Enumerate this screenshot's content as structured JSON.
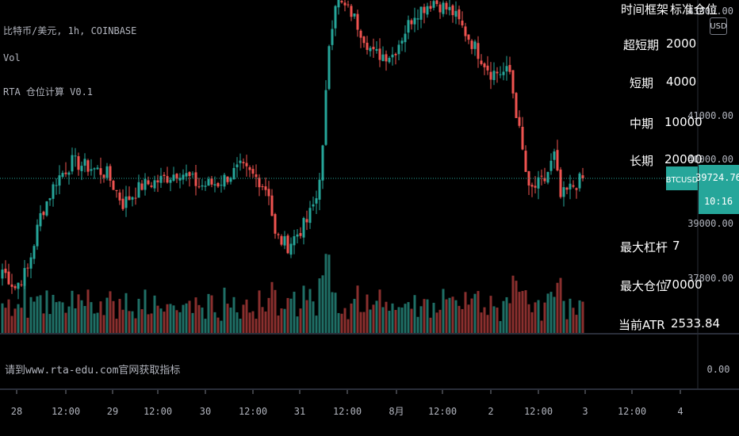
{
  "legend": {
    "symbol_line": "比特币/美元, 1h, COINBASE",
    "volume_label": "Vol",
    "indicator_label": "RTA 仓位计算 V0.1"
  },
  "position_table": {
    "header": [
      "时间框架",
      "标准仓位"
    ],
    "rows": [
      {
        "name": "超短期",
        "value": "2000"
      },
      {
        "name": "短期",
        "value": "4000"
      },
      {
        "name": "中期",
        "value": "10000"
      },
      {
        "name": "长期",
        "value": "20000"
      }
    ],
    "lower_rows": [
      {
        "name": "最大杠杆",
        "value": "7"
      },
      {
        "name": "最大仓位",
        "value": "70000"
      },
      {
        "name": "当前ATR",
        "value": "2533.84"
      }
    ]
  },
  "lower_pane": {
    "text": "请到www.rta-edu.com官网获取指标",
    "axis_value": "0.00"
  },
  "price_scale_button": "USD",
  "current_price": {
    "symbol": "BTCUSD",
    "price": "39724.76",
    "countdown": "10:16"
  },
  "colors": {
    "background": "#000000",
    "up": "#26a69a",
    "down": "#ef5350",
    "up_volume": "#1f6f66",
    "down_volume": "#8a2f2e",
    "price_line": "#26a69a",
    "axis_text": "#b2b5be"
  },
  "chart_data": {
    "type": "candlestick",
    "y_axis_ticks": [
      "43000.00",
      "41000.00",
      "40000.00",
      "39000.00",
      "37800.00"
    ],
    "x_axis_ticks": [
      "28",
      "12:00",
      "29",
      "12:00",
      "30",
      "12:00",
      "31",
      "12:00",
      "8月",
      "12:00",
      "2",
      "12:00",
      "3",
      "12:00",
      "4"
    ],
    "ylim": [
      36700,
      43200
    ],
    "volume_series": "Vol",
    "anchors": [
      {
        "i": 0,
        "p": 38200
      },
      {
        "i": 4,
        "p": 37900
      },
      {
        "i": 8,
        "p": 38200
      },
      {
        "i": 12,
        "p": 39100
      },
      {
        "i": 17,
        "p": 39700
      },
      {
        "i": 22,
        "p": 40000
      },
      {
        "i": 28,
        "p": 39900
      },
      {
        "i": 33,
        "p": 39800
      },
      {
        "i": 38,
        "p": 39300
      },
      {
        "i": 44,
        "p": 39600
      },
      {
        "i": 50,
        "p": 39700
      },
      {
        "i": 56,
        "p": 39850
      },
      {
        "i": 62,
        "p": 39600
      },
      {
        "i": 68,
        "p": 39650
      },
      {
        "i": 75,
        "p": 39900
      },
      {
        "i": 81,
        "p": 39700
      },
      {
        "i": 84,
        "p": 39500
      },
      {
        "i": 86,
        "p": 38750
      },
      {
        "i": 90,
        "p": 38600
      },
      {
        "i": 96,
        "p": 39000
      },
      {
        "i": 99,
        "p": 39400
      },
      {
        "i": 101,
        "p": 40200
      },
      {
        "i": 103,
        "p": 42000
      },
      {
        "i": 105,
        "p": 42700
      },
      {
        "i": 110,
        "p": 42500
      },
      {
        "i": 117,
        "p": 41800
      },
      {
        "i": 123,
        "p": 41800
      },
      {
        "i": 130,
        "p": 42500
      },
      {
        "i": 136,
        "p": 42700
      },
      {
        "i": 142,
        "p": 42500
      },
      {
        "i": 148,
        "p": 42000
      },
      {
        "i": 154,
        "p": 41500
      },
      {
        "i": 160,
        "p": 41500
      },
      {
        "i": 163,
        "p": 40500
      },
      {
        "i": 166,
        "p": 39500
      },
      {
        "i": 171,
        "p": 39700
      },
      {
        "i": 174,
        "p": 40100
      },
      {
        "i": 176,
        "p": 39400
      },
      {
        "i": 180,
        "p": 39600
      },
      {
        "i": 183,
        "p": 39724.76
      }
    ],
    "candle_count": 184,
    "last_price": 39724.76
  }
}
